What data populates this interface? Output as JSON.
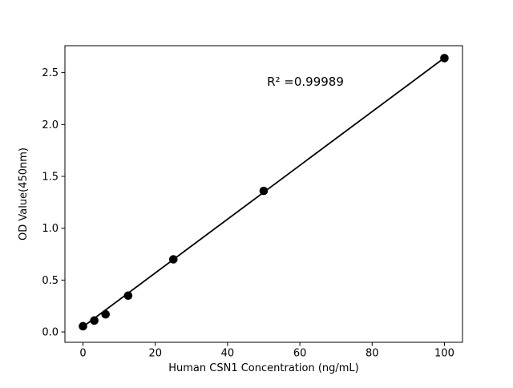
{
  "chart_data": {
    "type": "scatter",
    "title": "",
    "xlabel": "Human CSN1 Concentration (ng/mL)",
    "ylabel": "OD Value(450nm)",
    "annotation": "R² =0.99989",
    "x": [
      0,
      3.125,
      6.25,
      12.5,
      25,
      50,
      100
    ],
    "y": [
      0.055,
      0.11,
      0.17,
      0.35,
      0.7,
      1.36,
      2.64
    ],
    "fit_line": {
      "slope": 0.02593,
      "intercept": 0.05,
      "x_start": 0,
      "x_end": 100,
      "r_squared": 0.99989
    },
    "xlim": [
      -5,
      105
    ],
    "ylim": [
      -0.1,
      2.76
    ],
    "xticks": {
      "values": [
        0,
        20,
        40,
        60,
        80,
        100
      ],
      "labels": [
        "0",
        "20",
        "40",
        "60",
        "80",
        "100"
      ]
    },
    "yticks": {
      "values": [
        0,
        0.5,
        1.0,
        1.5,
        2.0,
        2.5
      ],
      "labels": [
        "0.0",
        "0.5",
        "1.0",
        "1.5",
        "2.0",
        "2.5"
      ]
    },
    "grid": false,
    "legend": "none",
    "marker_color": "#000000",
    "line_color": "#000000",
    "frame_color": "#000000",
    "background": "#ffffff"
  }
}
